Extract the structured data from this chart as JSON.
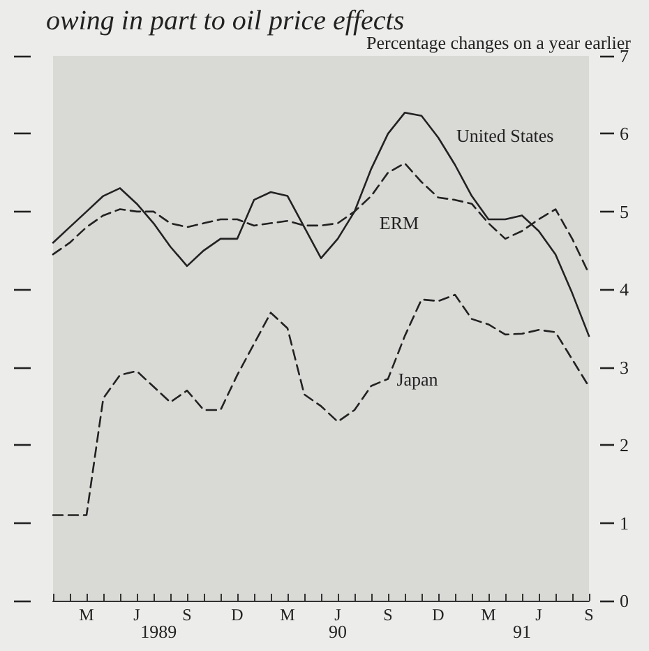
{
  "chart_data": {
    "type": "line",
    "title": "owing in part to oil price effects",
    "subtitle": "Percentage changes on a year earlier",
    "categories": [
      null,
      null,
      "M",
      null,
      null,
      "J",
      null,
      null,
      "S",
      null,
      null,
      "D",
      null,
      null,
      "M",
      null,
      null,
      "J",
      null,
      null,
      "S",
      null,
      null,
      "D",
      null,
      null,
      "M",
      null,
      null,
      "J",
      null,
      null,
      "S"
    ],
    "series": [
      {
        "name": "United States",
        "color": "#222222",
        "line_style": "solid",
        "values": [
          4.6,
          4.8,
          5.0,
          5.2,
          5.3,
          5.1,
          4.85,
          4.55,
          4.3,
          4.5,
          4.65,
          4.65,
          5.15,
          5.25,
          5.2,
          4.8,
          4.4,
          4.65,
          5.0,
          5.55,
          6.0,
          6.27,
          6.23,
          5.95,
          5.6,
          5.2,
          4.9,
          4.9,
          4.95,
          4.75,
          4.45,
          3.95,
          3.4
        ]
      },
      {
        "name": "ERM",
        "color": "#222222",
        "line_style": "dashed",
        "values": [
          4.45,
          4.6,
          4.8,
          4.95,
          5.03,
          5.0,
          5.0,
          4.85,
          4.8,
          4.85,
          4.9,
          4.9,
          4.82,
          4.85,
          4.88,
          4.82,
          4.82,
          4.85,
          5.0,
          5.2,
          5.5,
          5.62,
          5.38,
          5.18,
          5.15,
          5.1,
          4.85,
          4.65,
          4.75,
          4.9,
          5.03,
          4.65,
          4.2
        ]
      },
      {
        "name": "Japan",
        "color": "#222222",
        "line_style": "dashed",
        "values": [
          1.1,
          1.1,
          1.1,
          2.6,
          2.9,
          2.95,
          2.75,
          2.55,
          2.7,
          2.45,
          2.45,
          2.9,
          3.3,
          3.7,
          3.5,
          2.65,
          2.5,
          2.3,
          2.45,
          2.76,
          2.85,
          3.4,
          3.87,
          3.85,
          3.93,
          3.62,
          3.55,
          3.42,
          3.43,
          3.48,
          3.45,
          3.1,
          2.75
        ]
      }
    ],
    "ylim": [
      0,
      7
    ],
    "yticks": [
      0,
      1,
      2,
      3,
      4,
      5,
      6,
      7
    ],
    "annotations": [
      "1989",
      "90",
      "91"
    ],
    "grid": false,
    "legend": false,
    "marker": "none"
  }
}
